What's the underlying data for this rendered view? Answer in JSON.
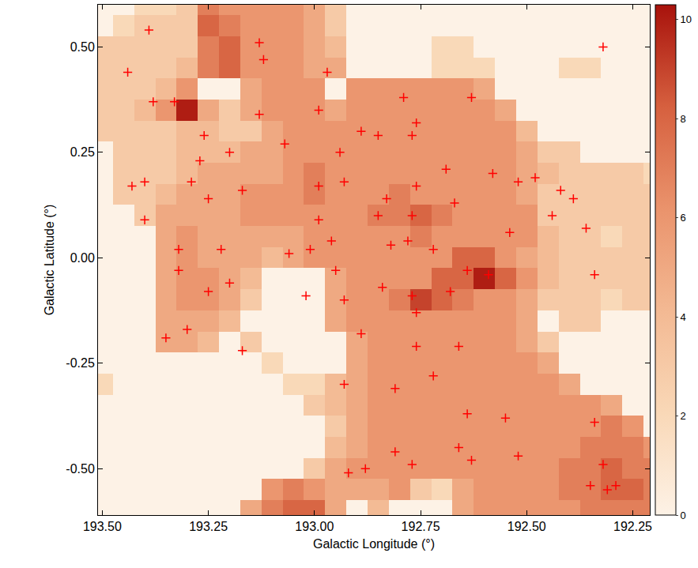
{
  "chart_data": {
    "type": "heatmap",
    "x_label": "Galactic Longitude (°)",
    "y_label": "Galactic Latitude (°)",
    "xlim": [
      193.51,
      192.21
    ],
    "ylim": [
      -0.61,
      0.6
    ],
    "xticks": [
      {
        "value": 193.5,
        "label": "193.50"
      },
      {
        "value": 193.25,
        "label": "193.25"
      },
      {
        "value": 193.0,
        "label": "193.00"
      },
      {
        "value": 192.75,
        "label": "192.75"
      },
      {
        "value": 192.5,
        "label": "192.50"
      },
      {
        "value": 192.25,
        "label": "192.25"
      }
    ],
    "yticks": [
      {
        "value": 0.5,
        "label": "0.50"
      },
      {
        "value": 0.25,
        "label": "0.25"
      },
      {
        "value": 0,
        "label": "0.00"
      },
      {
        "value": -0.25,
        "label": "-0.25"
      },
      {
        "value": -0.5,
        "label": "-0.50"
      }
    ],
    "colorbar_range": [
      0,
      10.3
    ],
    "colorbar_ticks": [
      0,
      2,
      4,
      6,
      8,
      10
    ],
    "cells": {
      "x": [
        193.5,
        193.45,
        193.4,
        193.35,
        193.3,
        193.25,
        193.2,
        193.15,
        193.1,
        193.05,
        193.0,
        192.95,
        192.9,
        192.85,
        192.8,
        192.75,
        192.7,
        192.65,
        192.6,
        192.55,
        192.5,
        192.45,
        192.4,
        192.35,
        192.3,
        192.25,
        192.2
      ],
      "y": [
        0.6,
        0.55,
        0.5,
        0.45,
        0.4,
        0.35,
        0.3,
        0.25,
        0.2,
        0.15,
        0.1,
        0.05,
        0.0,
        -0.05,
        -0.1,
        -0.15,
        -0.2,
        -0.25,
        -0.3,
        -0.35,
        -0.4,
        -0.45,
        -0.5,
        -0.55,
        -0.6
      ],
      "z": [
        [
          0,
          0,
          2,
          2,
          3,
          7,
          6,
          6,
          6,
          6,
          5,
          3,
          0,
          0,
          0,
          0,
          0,
          0,
          0,
          0,
          0,
          0,
          0,
          0,
          0,
          0,
          0
        ],
        [
          0,
          2,
          3,
          3,
          3,
          8,
          7,
          6,
          6,
          6,
          5,
          3,
          0,
          0,
          0,
          0,
          0,
          0,
          0,
          0,
          0,
          0,
          0,
          0,
          0,
          0,
          0
        ],
        [
          3,
          3,
          3,
          3,
          3,
          7,
          8,
          6,
          6,
          6,
          5,
          4,
          0,
          0,
          0,
          0,
          2,
          2,
          0,
          0,
          0,
          0,
          0,
          0,
          0,
          0,
          0
        ],
        [
          3,
          3,
          3,
          3,
          4,
          7,
          8,
          6,
          6,
          6,
          5,
          5,
          0,
          0,
          0,
          0,
          2,
          2,
          2,
          0,
          0,
          0,
          2,
          2,
          0,
          0,
          0
        ],
        [
          3,
          3,
          3,
          4,
          6,
          0,
          0,
          5,
          6,
          6,
          6,
          0,
          6,
          6,
          6,
          6,
          6,
          6,
          5,
          0,
          0,
          0,
          0,
          0,
          0,
          0,
          0
        ],
        [
          3,
          3,
          4,
          6,
          10,
          5,
          3,
          5,
          6,
          6,
          6,
          5,
          6,
          6,
          6,
          6,
          6,
          6,
          6,
          5,
          0,
          0,
          0,
          0,
          0,
          0,
          0
        ],
        [
          3,
          3,
          3,
          3,
          4,
          4,
          3,
          3,
          5,
          6,
          6,
          6,
          6,
          6,
          6,
          6,
          6,
          6,
          6,
          6,
          4,
          0,
          0,
          0,
          0,
          0,
          0
        ],
        [
          0,
          3,
          3,
          3,
          4,
          4,
          4,
          5,
          5,
          6,
          6,
          6,
          6,
          6,
          6,
          6,
          6,
          6,
          6,
          6,
          5,
          3,
          3,
          0,
          0,
          0,
          0
        ],
        [
          0,
          3,
          3,
          3,
          4,
          5,
          5,
          5,
          5,
          6,
          7,
          6,
          6,
          6,
          6,
          6,
          6,
          6,
          6,
          6,
          5,
          4,
          3,
          3,
          3,
          3,
          2
        ],
        [
          0,
          3,
          3,
          4,
          5,
          5,
          5,
          6,
          6,
          6,
          7,
          6,
          6,
          6,
          7,
          6,
          6,
          6,
          6,
          6,
          5,
          3,
          3,
          3,
          3,
          3,
          3
        ],
        [
          0,
          0,
          3,
          5,
          5,
          5,
          5,
          6,
          6,
          6,
          6,
          6,
          6,
          7,
          7,
          8,
          7,
          6,
          6,
          6,
          6,
          3,
          3,
          3,
          3,
          3,
          3
        ],
        [
          0,
          0,
          0,
          5,
          6,
          5,
          5,
          5,
          5,
          5,
          6,
          6,
          6,
          6,
          6,
          7,
          6,
          6,
          6,
          6,
          6,
          4,
          3,
          3,
          2,
          3,
          3
        ],
        [
          0,
          0,
          0,
          5,
          6,
          5,
          5,
          5,
          4,
          5,
          6,
          6,
          6,
          6,
          6,
          6,
          6,
          8,
          8,
          6,
          5,
          4,
          3,
          3,
          3,
          3,
          3
        ],
        [
          0,
          0,
          0,
          5,
          6,
          6,
          5,
          4,
          0,
          0,
          0,
          5,
          6,
          6,
          6,
          6,
          8,
          8,
          10,
          8,
          6,
          4,
          3,
          3,
          3,
          3,
          3
        ],
        [
          0,
          0,
          0,
          5,
          6,
          6,
          5,
          3,
          0,
          0,
          0,
          5,
          6,
          6,
          7,
          9,
          8,
          7,
          6,
          6,
          5,
          3,
          3,
          3,
          2,
          3,
          3
        ],
        [
          0,
          0,
          0,
          5,
          5,
          5,
          4,
          0,
          0,
          0,
          0,
          5,
          6,
          6,
          6,
          6,
          6,
          6,
          6,
          6,
          5,
          0,
          3,
          3,
          0,
          0,
          0
        ],
        [
          0,
          0,
          0,
          5,
          5,
          4,
          0,
          3,
          0,
          0,
          0,
          0,
          5,
          6,
          6,
          6,
          6,
          6,
          6,
          6,
          5,
          3,
          0,
          0,
          0,
          0,
          0
        ],
        [
          0,
          0,
          0,
          0,
          0,
          0,
          0,
          0,
          2,
          0,
          0,
          0,
          5,
          6,
          6,
          6,
          6,
          6,
          6,
          6,
          6,
          5,
          0,
          0,
          0,
          0,
          0
        ],
        [
          2,
          0,
          0,
          0,
          0,
          0,
          0,
          0,
          0,
          2,
          2,
          4,
          5,
          6,
          6,
          6,
          6,
          6,
          6,
          6,
          6,
          6,
          5,
          0,
          0,
          0,
          0
        ],
        [
          0,
          0,
          0,
          0,
          0,
          0,
          0,
          0,
          0,
          0,
          3,
          4,
          5,
          6,
          6,
          6,
          6,
          6,
          6,
          6,
          6,
          6,
          6,
          6,
          5,
          0,
          0
        ],
        [
          0,
          0,
          0,
          0,
          0,
          0,
          0,
          0,
          0,
          0,
          0,
          3,
          5,
          6,
          6,
          6,
          6,
          6,
          6,
          6,
          6,
          6,
          6,
          6,
          7,
          6,
          0
        ],
        [
          0,
          0,
          0,
          0,
          0,
          0,
          0,
          0,
          0,
          0,
          0,
          4,
          5,
          6,
          6,
          6,
          6,
          6,
          6,
          6,
          6,
          6,
          6,
          7,
          7,
          7,
          6
        ],
        [
          0,
          0,
          0,
          0,
          0,
          0,
          0,
          0,
          0,
          0,
          3,
          5,
          6,
          6,
          6,
          6,
          6,
          6,
          6,
          6,
          6,
          6,
          7,
          7,
          8,
          7,
          7
        ],
        [
          0,
          0,
          0,
          0,
          0,
          0,
          0,
          0,
          6,
          7,
          6,
          5,
          5,
          5,
          6,
          3,
          2,
          5,
          6,
          6,
          6,
          6,
          7,
          7,
          8,
          8,
          7
        ],
        [
          0,
          0,
          0,
          0,
          0,
          0,
          0,
          5,
          7,
          8,
          8,
          5,
          0,
          4,
          0,
          0,
          0,
          5,
          6,
          6,
          6,
          6,
          6,
          7,
          7,
          7,
          7
        ]
      ]
    },
    "points": {
      "marker": "cross",
      "color": "#ff0000",
      "x": [
        193.39,
        193.44,
        193.38,
        193.33,
        193.26,
        193.2,
        193.27,
        193.29,
        193.25,
        193.43,
        193.4,
        193.17,
        193.4,
        193.32,
        193.22,
        193.32,
        193.2,
        193.25,
        193.3,
        193.35,
        193.13,
        193.12,
        193.13,
        193.07,
        192.97,
        192.99,
        192.94,
        192.99,
        192.93,
        192.89,
        192.85,
        192.79,
        192.76,
        192.77,
        192.76,
        192.83,
        192.85,
        192.77,
        192.99,
        193.06,
        193.01,
        192.96,
        192.82,
        192.78,
        192.72,
        192.69,
        192.67,
        192.58,
        192.52,
        192.48,
        192.54,
        192.42,
        192.44,
        192.39,
        192.36,
        192.34,
        192.63,
        192.95,
        193.02,
        192.93,
        192.84,
        192.77,
        192.76,
        192.64,
        192.59,
        192.68,
        192.76,
        192.66,
        192.72,
        192.89,
        192.93,
        192.81,
        192.64,
        192.55,
        192.52,
        192.81,
        192.77,
        192.88,
        192.92,
        192.63,
        192.66,
        192.34,
        192.35,
        192.32,
        192.31,
        192.29,
        192.32,
        193.17
      ],
      "y": [
        0.54,
        0.44,
        0.37,
        0.37,
        0.29,
        0.25,
        0.23,
        0.18,
        0.14,
        0.17,
        0.18,
        0.16,
        0.09,
        0.02,
        0.02,
        -0.03,
        -0.06,
        -0.08,
        -0.17,
        -0.19,
        0.51,
        0.47,
        0.34,
        0.27,
        0.44,
        0.35,
        0.25,
        0.17,
        0.18,
        0.3,
        0.29,
        0.38,
        0.32,
        0.29,
        0.17,
        0.14,
        0.1,
        0.1,
        0.09,
        0.01,
        0.02,
        0.04,
        0.03,
        0.04,
        0.02,
        0.21,
        0.13,
        0.2,
        0.18,
        0.19,
        0.06,
        0.16,
        0.1,
        0.14,
        0.07,
        -0.04,
        0.38,
        -0.03,
        -0.09,
        -0.1,
        -0.07,
        -0.09,
        -0.13,
        -0.03,
        -0.04,
        -0.08,
        -0.21,
        -0.21,
        -0.28,
        -0.18,
        -0.3,
        -0.31,
        -0.37,
        -0.38,
        -0.47,
        -0.46,
        -0.49,
        -0.5,
        -0.51,
        -0.48,
        -0.45,
        -0.39,
        -0.54,
        -0.49,
        -0.55,
        -0.54,
        0.5,
        -0.22
      ]
    }
  }
}
